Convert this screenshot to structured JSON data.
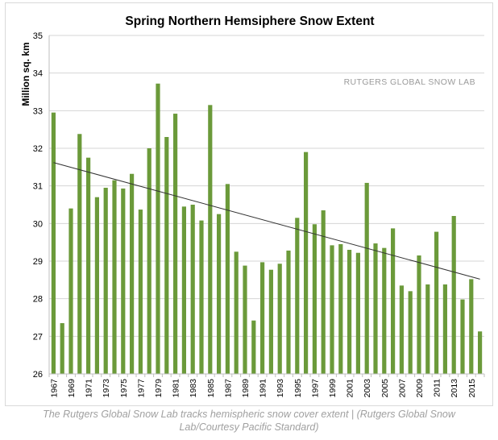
{
  "chart_data": {
    "type": "bar",
    "title": "Spring Northern Hemsiphere Snow Extent",
    "ylabel": "Million sq. km",
    "xlabel": "",
    "ylim": [
      26,
      35
    ],
    "yticks": [
      "26",
      "27",
      "28",
      "29",
      "30",
      "31",
      "32",
      "33",
      "34",
      "35"
    ],
    "grid": true,
    "annotation": "RUTGERS GLOBAL SNOW LAB",
    "bar_color": "#6b9a3a",
    "x": [
      1967,
      1968,
      1969,
      1970,
      1971,
      1972,
      1973,
      1974,
      1975,
      1976,
      1977,
      1978,
      1979,
      1980,
      1981,
      1982,
      1983,
      1984,
      1985,
      1986,
      1987,
      1988,
      1989,
      1990,
      1991,
      1992,
      1993,
      1994,
      1995,
      1996,
      1997,
      1998,
      1999,
      2000,
      2001,
      2002,
      2003,
      2004,
      2005,
      2006,
      2007,
      2008,
      2009,
      2010,
      2011,
      2012,
      2013,
      2014,
      2015,
      2016
    ],
    "x_tick_labels": [
      "1967",
      "1969",
      "1971",
      "1973",
      "1975",
      "1977",
      "1979",
      "1981",
      "1983",
      "1985",
      "1987",
      "1989",
      "1991",
      "1993",
      "1995",
      "1997",
      "1999",
      "2001",
      "2003",
      "2005",
      "2007",
      "2009",
      "2011",
      "2013",
      "2015"
    ],
    "values": [
      32.95,
      27.35,
      30.4,
      32.38,
      31.75,
      30.7,
      30.95,
      31.15,
      30.93,
      31.32,
      30.37,
      32.0,
      33.72,
      32.3,
      32.92,
      30.45,
      30.5,
      30.08,
      33.15,
      30.25,
      31.05,
      29.25,
      28.88,
      27.42,
      28.97,
      28.77,
      28.93,
      29.28,
      30.15,
      31.9,
      29.98,
      30.35,
      29.42,
      29.45,
      29.3,
      29.22,
      31.08,
      29.47,
      29.35,
      29.87,
      28.35,
      28.2,
      29.15,
      28.38,
      29.78,
      28.38,
      30.2,
      27.98,
      28.52,
      27.13
    ],
    "trendline": {
      "x": [
        1967,
        2016
      ],
      "y": [
        31.62,
        28.52
      ]
    }
  },
  "caption": "The Rutgers Global Snow Lab tracks hemispheric snow cover extent | (Rutgers Global Snow Lab/Courtesy Pacific Standard)"
}
